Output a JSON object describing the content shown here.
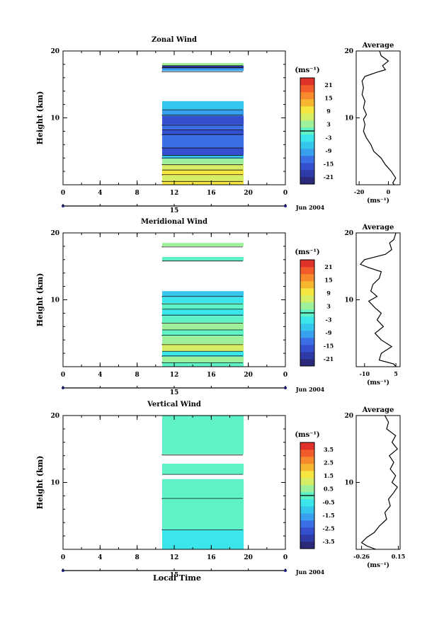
{
  "figure": {
    "x_axis_label": "Local Time",
    "date_label": "Jun 2004",
    "day_label": "15"
  },
  "chart_data": [
    {
      "type": "heatmap",
      "title": "Zonal Wind",
      "ylabel": "Height (km)",
      "xlim": [
        0,
        24
      ],
      "ylim": [
        0,
        20
      ],
      "xticks": [
        "0",
        "4",
        "8",
        "12",
        "16",
        "20",
        "0"
      ],
      "yticks": [
        "10",
        "20"
      ],
      "data_x_range": [
        10.7,
        19.5
      ],
      "colorbar": {
        "unit_label": "(ms⁻¹)",
        "ticks": [
          "21",
          "15",
          "9",
          "3",
          "-3",
          "-9",
          "-15",
          "-21"
        ],
        "levels": [
          "-21",
          "-18",
          "-15",
          "-12",
          "-9",
          "-6",
          "-3",
          "0",
          "3",
          "6",
          "9",
          "12",
          "15",
          "18",
          "21"
        ]
      },
      "bands": [
        {
          "y0": 0.0,
          "y1": 0.6,
          "value": 9
        },
        {
          "y0": 0.6,
          "y1": 1.4,
          "value": 6
        },
        {
          "y0": 1.4,
          "y1": 2.2,
          "value": 9
        },
        {
          "y0": 2.2,
          "y1": 3.1,
          "value": 6
        },
        {
          "y0": 3.1,
          "y1": 3.9,
          "value": 3
        },
        {
          "y0": 3.9,
          "y1": 4.4,
          "value": -6
        },
        {
          "y0": 4.4,
          "y1": 5.6,
          "value": -15
        },
        {
          "y0": 5.6,
          "y1": 7.4,
          "value": -12
        },
        {
          "y0": 7.4,
          "y1": 8.2,
          "value": -15
        },
        {
          "y0": 8.2,
          "y1": 9.0,
          "value": -12
        },
        {
          "y0": 9.0,
          "y1": 10.3,
          "value": -15
        },
        {
          "y0": 10.3,
          "y1": 11.2,
          "value": -9
        },
        {
          "y0": 11.2,
          "y1": 12.5,
          "value": -6
        },
        {
          "y0": 17.0,
          "y1": 17.4,
          "value": -9
        },
        {
          "y0": 17.4,
          "y1": 17.8,
          "value": -18
        },
        {
          "y0": 17.8,
          "y1": 18.2,
          "value": 3
        }
      ],
      "profile": {
        "title": "Average",
        "xlabel": "(ms⁻¹)",
        "xlim": [
          -22,
          8
        ],
        "xticks": [
          "-20",
          "0"
        ],
        "xtick_values": [
          -20,
          0
        ],
        "yticks": [
          "10",
          "20"
        ],
        "points": [
          [
            -6,
            20
          ],
          [
            -5,
            19.3
          ],
          [
            0,
            18.5
          ],
          [
            -4,
            17.8
          ],
          [
            -2,
            17.2
          ],
          [
            -8,
            16.8
          ],
          [
            -16,
            16.2
          ],
          [
            -18,
            15.5
          ],
          [
            -17,
            14.5
          ],
          [
            -18,
            13.5
          ],
          [
            -16,
            12.5
          ],
          [
            -17,
            11.5
          ],
          [
            -15,
            10.5
          ],
          [
            -17,
            9.8
          ],
          [
            -16,
            9
          ],
          [
            -17,
            8
          ],
          [
            -15,
            7
          ],
          [
            -12,
            6
          ],
          [
            -10,
            5
          ],
          [
            -5,
            4
          ],
          [
            -2,
            3
          ],
          [
            2,
            2
          ],
          [
            5,
            1
          ],
          [
            3,
            0.3
          ],
          [
            4,
            0
          ]
        ]
      }
    },
    {
      "type": "heatmap",
      "title": "Meridional Wind",
      "ylabel": "Height (km)",
      "xlim": [
        0,
        24
      ],
      "ylim": [
        0,
        20
      ],
      "xticks": [
        "0",
        "4",
        "8",
        "12",
        "16",
        "20",
        "0"
      ],
      "yticks": [
        "10",
        "20"
      ],
      "data_x_range": [
        10.7,
        19.5
      ],
      "colorbar": {
        "unit_label": "(ms⁻¹)",
        "ticks": [
          "21",
          "15",
          "9",
          "3",
          "-3",
          "-9",
          "-15",
          "-21"
        ],
        "levels": [
          "-21",
          "-18",
          "-15",
          "-12",
          "-9",
          "-6",
          "-3",
          "0",
          "3",
          "6",
          "9",
          "12",
          "15",
          "18",
          "21"
        ]
      },
      "bands": [
        {
          "y0": 0.0,
          "y1": 0.7,
          "value": 0
        },
        {
          "y0": 0.7,
          "y1": 1.5,
          "value": 3
        },
        {
          "y0": 1.5,
          "y1": 2.3,
          "value": -3
        },
        {
          "y0": 2.3,
          "y1": 3.4,
          "value": 6
        },
        {
          "y0": 3.4,
          "y1": 4.6,
          "value": 3
        },
        {
          "y0": 4.6,
          "y1": 5.5,
          "value": 0
        },
        {
          "y0": 5.5,
          "y1": 6.6,
          "value": 3
        },
        {
          "y0": 6.6,
          "y1": 7.6,
          "value": 0
        },
        {
          "y0": 7.6,
          "y1": 8.6,
          "value": -3
        },
        {
          "y0": 8.6,
          "y1": 9.5,
          "value": 0
        },
        {
          "y0": 9.5,
          "y1": 10.4,
          "value": -3
        },
        {
          "y0": 10.4,
          "y1": 11.3,
          "value": -6
        },
        {
          "y0": 15.8,
          "y1": 16.4,
          "value": 0
        },
        {
          "y0": 18.0,
          "y1": 18.5,
          "value": 3
        }
      ],
      "profile": {
        "title": "Average",
        "xlabel": "(ms⁻¹)",
        "xlim": [
          -14,
          7
        ],
        "xticks": [
          "-10",
          "5"
        ],
        "xtick_values": [
          -10,
          5
        ],
        "yticks": [
          "10",
          "20"
        ],
        "points": [
          [
            5,
            20
          ],
          [
            4,
            19
          ],
          [
            2,
            18.5
          ],
          [
            3,
            17.5
          ],
          [
            0,
            16.8
          ],
          [
            -10,
            16
          ],
          [
            -12,
            15.3
          ],
          [
            -8,
            14.8
          ],
          [
            -2,
            14.2
          ],
          [
            -3,
            13.2
          ],
          [
            -6,
            12.3
          ],
          [
            -7,
            11.3
          ],
          [
            -4,
            10.5
          ],
          [
            -8,
            9.8
          ],
          [
            -5,
            8.8
          ],
          [
            -2,
            8
          ],
          [
            -4,
            7
          ],
          [
            -1,
            6
          ],
          [
            -5,
            5
          ],
          [
            -2,
            4
          ],
          [
            3,
            3
          ],
          [
            -2,
            2
          ],
          [
            -3,
            1
          ],
          [
            4,
            0.4
          ],
          [
            5,
            0
          ]
        ]
      }
    },
    {
      "type": "heatmap",
      "title": "Vertical Wind",
      "ylabel": "Height (km)",
      "xlim": [
        0,
        24
      ],
      "ylim": [
        0,
        20
      ],
      "xticks": [
        "0",
        "4",
        "8",
        "12",
        "16",
        "20",
        "0"
      ],
      "yticks": [
        "10",
        "20"
      ],
      "data_x_range": [
        10.7,
        19.5
      ],
      "colorbar": {
        "unit_label": "(ms⁻¹)",
        "ticks": [
          "3.5",
          "2.5",
          "1.5",
          "0.5",
          "-0.5",
          "-1.5",
          "-2.5",
          "-3.5"
        ],
        "levels": [
          "-3.5",
          "-3.0",
          "-2.5",
          "-2.0",
          "-1.5",
          "-1.0",
          "-0.5",
          "0.0",
          "0.5",
          "1.0",
          "1.5",
          "2.0",
          "2.5",
          "3.0",
          "3.5"
        ]
      },
      "bands": [
        {
          "y0": 0.0,
          "y1": 3.0,
          "value": -0.5
        },
        {
          "y0": 3.0,
          "y1": 7.5,
          "value": 0.2
        },
        {
          "y0": 7.5,
          "y1": 10.5,
          "value": 0.3
        },
        {
          "y0": 11.2,
          "y1": 12.8,
          "value": 0.2
        },
        {
          "y0": 14.2,
          "y1": 20.0,
          "value": 0.3
        }
      ],
      "profile": {
        "title": "Average",
        "xlabel": "(ms⁻¹)",
        "xlim": [
          -0.32,
          0.17
        ],
        "xticks": [
          "-0.26",
          "0.15"
        ],
        "xtick_values": [
          -0.26,
          0.15
        ],
        "yticks": [
          "10",
          "20"
        ],
        "points": [
          [
            0.0,
            20
          ],
          [
            0.04,
            19
          ],
          [
            0.02,
            18
          ],
          [
            0.12,
            17
          ],
          [
            0.08,
            16
          ],
          [
            0.14,
            15
          ],
          [
            0.05,
            14
          ],
          [
            0.1,
            13
          ],
          [
            0.06,
            12
          ],
          [
            0.12,
            11
          ],
          [
            0.08,
            10
          ],
          [
            0.14,
            9.3
          ],
          [
            0.1,
            8.5
          ],
          [
            0.04,
            7.5
          ],
          [
            0.06,
            6.5
          ],
          [
            0.0,
            5.5
          ],
          [
            0.02,
            4.5
          ],
          [
            -0.06,
            3.5
          ],
          [
            -0.12,
            2.5
          ],
          [
            -0.2,
            1.8
          ],
          [
            -0.26,
            1.0
          ],
          [
            -0.2,
            0.5
          ],
          [
            -0.1,
            0
          ]
        ]
      }
    }
  ]
}
